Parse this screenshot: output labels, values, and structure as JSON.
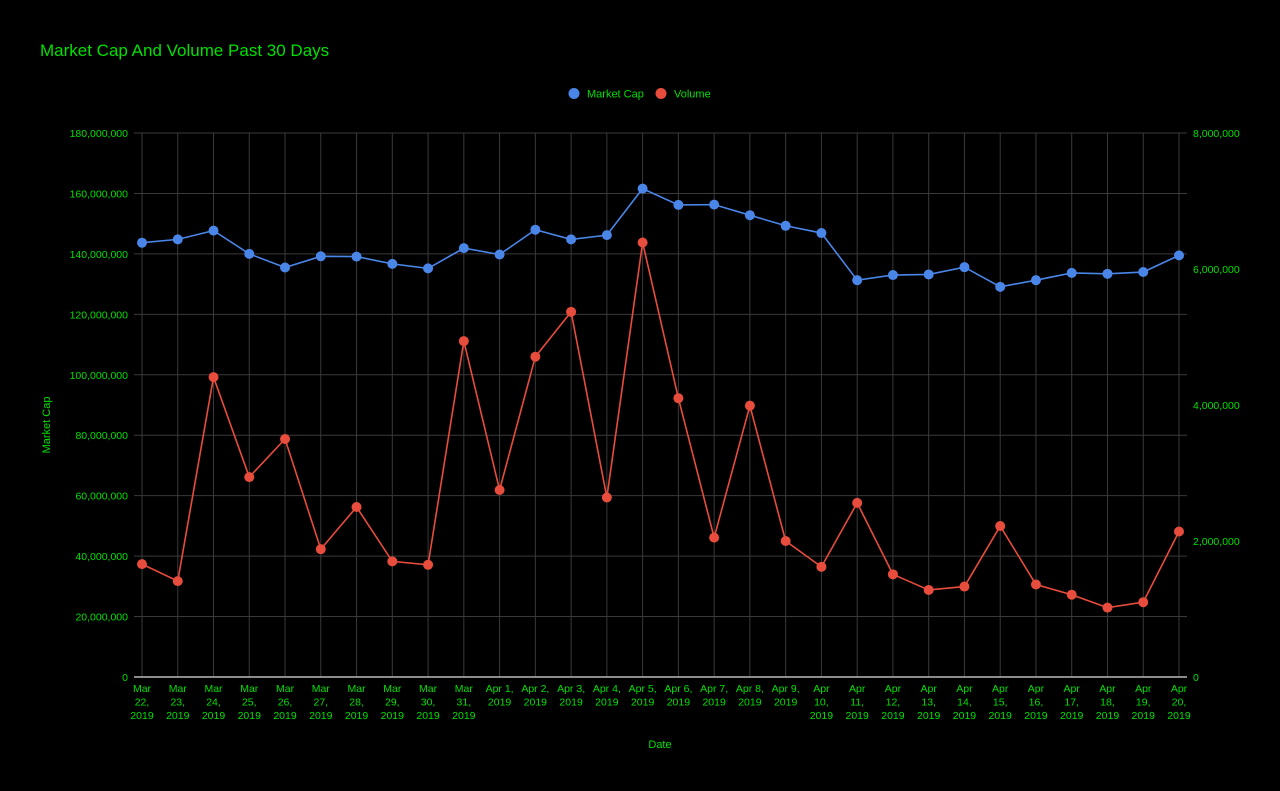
{
  "chart_data": {
    "type": "line",
    "title": "Market Cap And Volume Past 30 Days",
    "xlabel": "Date",
    "ylabel": "Market Cap",
    "y2label": "",
    "ylim": [
      0,
      180000000
    ],
    "y2lim": [
      0,
      8000000
    ],
    "yticks": [
      "0",
      "20,000,000",
      "40,000,000",
      "60,000,000",
      "80,000,000",
      "100,000,000",
      "120,000,000",
      "140,000,000",
      "160,000,000",
      "180,000,000"
    ],
    "y2ticks": [
      "0",
      "2,000,000",
      "4,000,000",
      "6,000,000",
      "8,000,000"
    ],
    "grid": true,
    "legend_position": "top",
    "categories": [
      [
        "Mar",
        "22,",
        "2019"
      ],
      [
        "Mar",
        "23,",
        "2019"
      ],
      [
        "Mar",
        "24,",
        "2019"
      ],
      [
        "Mar",
        "25,",
        "2019"
      ],
      [
        "Mar",
        "26,",
        "2019"
      ],
      [
        "Mar",
        "27,",
        "2019"
      ],
      [
        "Mar",
        "28,",
        "2019"
      ],
      [
        "Mar",
        "29,",
        "2019"
      ],
      [
        "Mar",
        "30,",
        "2019"
      ],
      [
        "Mar",
        "31,",
        "2019"
      ],
      [
        "Apr 1,",
        "2019"
      ],
      [
        "Apr 2,",
        "2019"
      ],
      [
        "Apr 3,",
        "2019"
      ],
      [
        "Apr 4,",
        "2019"
      ],
      [
        "Apr 5,",
        "2019"
      ],
      [
        "Apr 6,",
        "2019"
      ],
      [
        "Apr 7,",
        "2019"
      ],
      [
        "Apr 8,",
        "2019"
      ],
      [
        "Apr 9,",
        "2019"
      ],
      [
        "Apr",
        "10,",
        "2019"
      ],
      [
        "Apr",
        "11,",
        "2019"
      ],
      [
        "Apr",
        "12,",
        "2019"
      ],
      [
        "Apr",
        "13,",
        "2019"
      ],
      [
        "Apr",
        "14,",
        "2019"
      ],
      [
        "Apr",
        "15,",
        "2019"
      ],
      [
        "Apr",
        "16,",
        "2019"
      ],
      [
        "Apr",
        "17,",
        "2019"
      ],
      [
        "Apr",
        "18,",
        "2019"
      ],
      [
        "Apr",
        "19,",
        "2019"
      ],
      [
        "Apr",
        "20,",
        "2019"
      ]
    ],
    "series": [
      {
        "name": "Market Cap",
        "axis": "left",
        "color": "#4a86e8",
        "values": [
          143700000,
          144800000,
          147700000,
          140000000,
          135500000,
          139200000,
          139100000,
          136700000,
          135200000,
          141900000,
          139800000,
          148000000,
          144800000,
          146200000,
          161600000,
          156200000,
          156300000,
          152800000,
          149300000,
          146900000,
          131300000,
          133000000,
          133200000,
          135600000,
          129100000,
          131300000,
          133700000,
          133400000,
          134000000,
          139500000
        ]
      },
      {
        "name": "Volume",
        "axis": "right",
        "color": "#e74c3c",
        "values": [
          1660000,
          1410000,
          4410000,
          2940000,
          3500000,
          1880000,
          2500000,
          1700000,
          1650000,
          4940000,
          2750000,
          4710000,
          5370000,
          2640000,
          6390000,
          4100000,
          2050000,
          3990000,
          2000000,
          1620000,
          2560000,
          1510000,
          1280000,
          1330000,
          2220000,
          1360000,
          1210000,
          1020000,
          1100000,
          2140000
        ]
      }
    ],
    "colors": {
      "text": "#00e000",
      "grid": "#3a3a3a",
      "background": "#000000"
    }
  }
}
